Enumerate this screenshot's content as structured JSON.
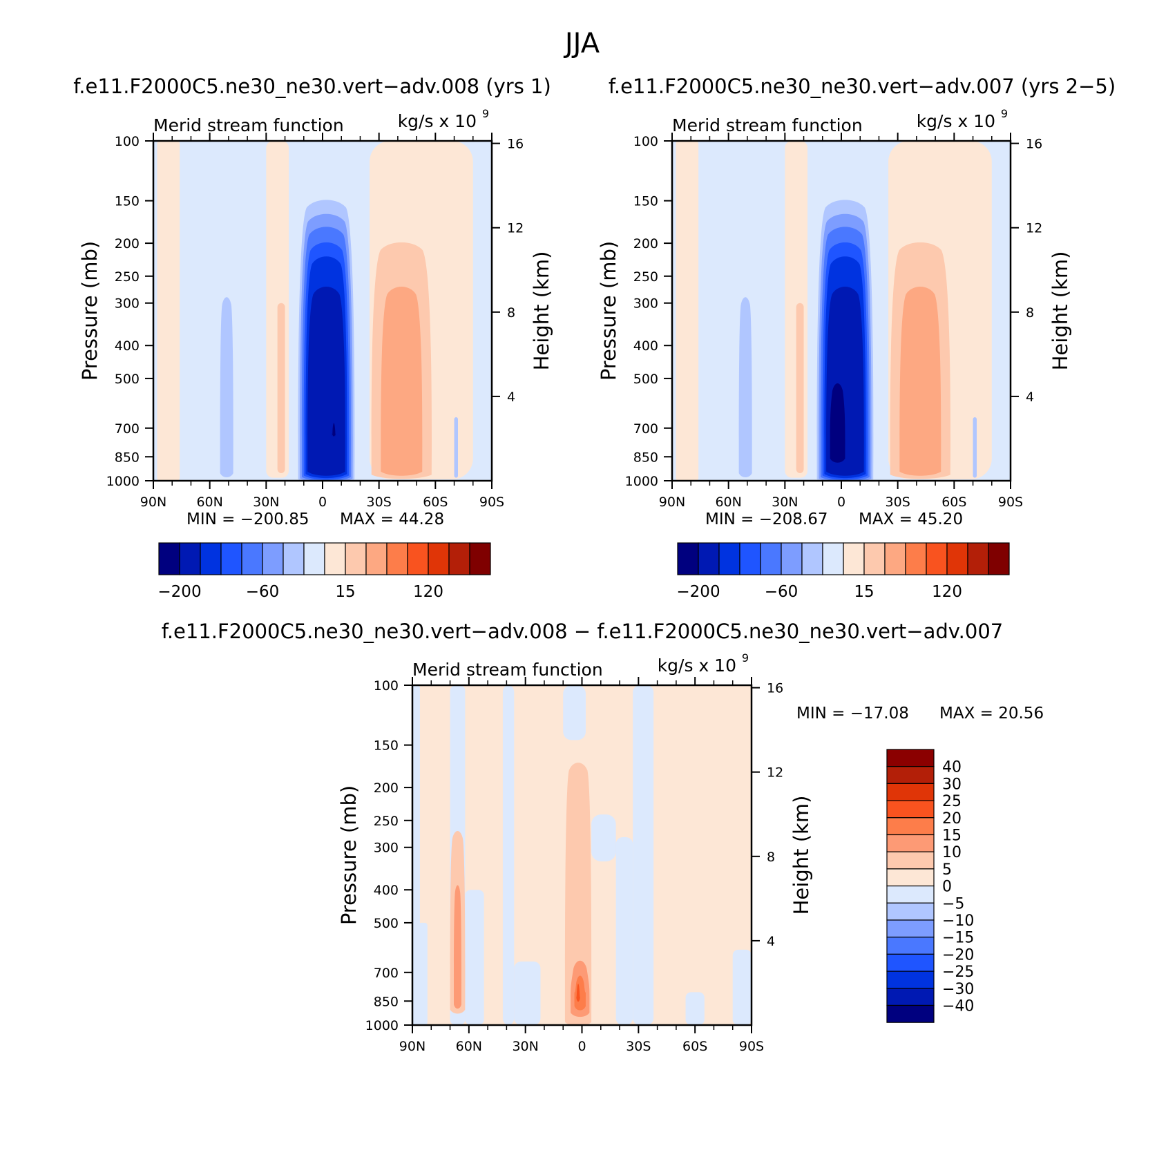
{
  "page_title": "JJA",
  "colors": {
    "full_palette": [
      "#00007f",
      "#0019b3",
      "#0033e0",
      "#1f55ff",
      "#4a78ff",
      "#7d9dff",
      "#b0c6ff",
      "#dce9fd",
      "#fde7d6",
      "#fdc9ae",
      "#fda882",
      "#fd7d4a",
      "#f9531f",
      "#e03507",
      "#b31f08",
      "#7f0000"
    ],
    "diff_palette": [
      "#00007f",
      "#0019b3",
      "#0033e0",
      "#1f55ff",
      "#4a78ff",
      "#7d9dff",
      "#b0c6ff",
      "#dce9fd",
      "#fde7d6",
      "#fdc9ae",
      "#fd9a75",
      "#fd7d4a",
      "#f9531f",
      "#e03507",
      "#b31f08",
      "#8b0000"
    ]
  },
  "chart_data": [
    {
      "type": "heatmap",
      "panel": "top-left",
      "title": "f.e11.F2000C5.ne30_ne30.vert−adv.008 (yrs 1)",
      "subtitle_left": "Merid stream function",
      "subtitle_right": "kg/s x 10",
      "units_exponent": "9",
      "ylabel": "Pressure (mb)",
      "ylabel_right": "Height (km)",
      "x_ticks": [
        "90N",
        "60N",
        "30N",
        "0",
        "30S",
        "60S",
        "90S"
      ],
      "y_ticks": [
        "100",
        "150",
        "200",
        "250",
        "300",
        "400",
        "500",
        "700",
        "850",
        "1000"
      ],
      "y_ticks_right": [
        "16",
        "12",
        "8",
        "4"
      ],
      "ylim": [
        1000,
        100
      ],
      "min_label": "MIN = −200.85",
      "max_label": "MAX =  44.28",
      "min": -200.85,
      "max": 44.28,
      "colorbar_labels": [
        "−200",
        "−60",
        "15",
        "120"
      ],
      "features": [
        {
          "name": "hadley-cell-core",
          "lat_center": -2,
          "lat_halfwidth": 12,
          "p_top": 180,
          "p_bottom": 960,
          "value": -200
        },
        {
          "name": "southern-ferrel-cell",
          "lat_center": -42,
          "lat_halfwidth": 12,
          "p_top": 230,
          "p_bottom": 950,
          "value": 30
        },
        {
          "name": "northern-negative-band",
          "lat_center": 51,
          "lat_halfwidth": 4,
          "p_top": 300,
          "p_bottom": 950,
          "value": -10
        }
      ]
    },
    {
      "type": "heatmap",
      "panel": "top-right",
      "title": "f.e11.F2000C5.ne30_ne30.vert−adv.007 (yrs 2−5)",
      "subtitle_left": "Merid stream function",
      "subtitle_right": "kg/s x 10",
      "units_exponent": "9",
      "ylabel": "Pressure (mb)",
      "ylabel_right": "Height (km)",
      "x_ticks": [
        "90N",
        "60N",
        "30N",
        "0",
        "30S",
        "60S",
        "90S"
      ],
      "y_ticks": [
        "100",
        "150",
        "200",
        "250",
        "300",
        "400",
        "500",
        "700",
        "850",
        "1000"
      ],
      "y_ticks_right": [
        "16",
        "12",
        "8",
        "4"
      ],
      "ylim": [
        1000,
        100
      ],
      "min_label": "MIN = −208.67",
      "max_label": "MAX =  45.20",
      "min": -208.67,
      "max": 45.2,
      "colorbar_labels": [
        "−200",
        "−60",
        "15",
        "120"
      ],
      "features": [
        {
          "name": "hadley-cell-core",
          "lat_center": -2,
          "lat_halfwidth": 12,
          "p_top": 170,
          "p_bottom": 960,
          "value": -208
        },
        {
          "name": "southern-ferrel-cell",
          "lat_center": -42,
          "lat_halfwidth": 12,
          "p_top": 230,
          "p_bottom": 950,
          "value": 30
        },
        {
          "name": "northern-negative-band",
          "lat_center": 51,
          "lat_halfwidth": 4,
          "p_top": 300,
          "p_bottom": 950,
          "value": -10
        }
      ]
    },
    {
      "type": "heatmap",
      "panel": "bottom",
      "title": "f.e11.F2000C5.ne30_ne30.vert−adv.008 − f.e11.F2000C5.ne30_ne30.vert−adv.007",
      "subtitle_left": "Merid stream function",
      "subtitle_right": "kg/s x 10",
      "units_exponent": "9",
      "ylabel": "Pressure (mb)",
      "ylabel_right": "Height (km)",
      "x_ticks": [
        "90N",
        "60N",
        "30N",
        "0",
        "30S",
        "60S",
        "90S"
      ],
      "y_ticks": [
        "100",
        "150",
        "200",
        "250",
        "300",
        "400",
        "500",
        "700",
        "850",
        "1000"
      ],
      "y_ticks_right": [
        "16",
        "12",
        "8",
        "4"
      ],
      "ylim": [
        1000,
        100
      ],
      "min_label": "MIN = −17.08",
      "max_label": "MAX =  20.56",
      "min": -17.08,
      "max": 20.56,
      "colorbar_labels": [
        "40",
        "30",
        "25",
        "20",
        "15",
        "10",
        "5",
        "0",
        "−5",
        "−10",
        "−15",
        "−20",
        "−25",
        "−30",
        "−40"
      ],
      "features": [
        {
          "name": "equatorial-positive-maximum",
          "lat_center": 0,
          "lat_halfwidth": 5,
          "p_top": 700,
          "p_bottom": 900,
          "value": 20
        },
        {
          "name": "northern-positive-band",
          "lat_center": 66,
          "lat_halfwidth": 3,
          "p_top": 300,
          "p_bottom": 900,
          "value": 10
        }
      ]
    }
  ]
}
